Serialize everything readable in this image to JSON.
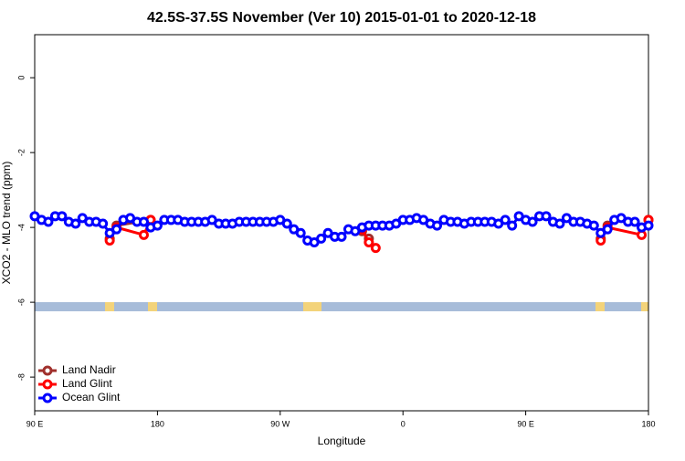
{
  "chart_data": {
    "type": "line",
    "title": "42.5S-37.5S November (Ver 10)   2015-01-01 to 2020-12-18",
    "x_label": "Longitude",
    "y_label": "XCO2 - MLO trend (ppm)",
    "xlim": [
      90,
      540
    ],
    "ylim": [
      -8.9,
      1.15
    ],
    "xticks": [
      {
        "value": 90,
        "label": "90 E"
      },
      {
        "value": 180,
        "label": "180"
      },
      {
        "value": 270,
        "label": "90 W"
      },
      {
        "value": 360,
        "label": "0"
      },
      {
        "value": 450,
        "label": "90 E"
      },
      {
        "value": 540,
        "label": "180"
      }
    ],
    "yticks": [
      0,
      -2,
      -4,
      -6,
      -8
    ],
    "legend": "bottom-left",
    "series": [
      {
        "name": "Land Nadir",
        "color": "#a0302c",
        "x": [
          145,
          150,
          175,
          330,
          335,
          505,
          510,
          540
        ],
        "values": [
          -4.3,
          -3.95,
          -3.8,
          -4.1,
          -4.3,
          -4.3,
          -3.95,
          -3.8
        ]
      },
      {
        "name": "Land Glint",
        "color": "#ff0000",
        "x": [
          145,
          150,
          170,
          175,
          330,
          335,
          340,
          505,
          510,
          535,
          540
        ],
        "values": [
          -4.35,
          -4.0,
          -4.2,
          -3.8,
          -4.05,
          -4.4,
          -4.55,
          -4.35,
          -4.0,
          -4.2,
          -3.8
        ]
      },
      {
        "name": "Ocean Glint",
        "color": "#0000ff",
        "x": [
          90,
          95,
          100,
          105,
          110,
          115,
          120,
          125,
          130,
          135,
          140,
          145,
          150,
          155,
          160,
          165,
          170,
          175,
          180,
          185,
          190,
          195,
          200,
          205,
          210,
          215,
          220,
          225,
          230,
          235,
          240,
          245,
          250,
          255,
          260,
          265,
          270,
          275,
          280,
          285,
          290,
          295,
          300,
          305,
          310,
          315,
          320,
          325,
          330,
          335,
          340,
          345,
          350,
          355,
          360,
          365,
          370,
          375,
          380,
          385,
          390,
          395,
          400,
          405,
          410,
          415,
          420,
          425,
          430,
          435,
          440,
          445,
          450,
          455,
          460,
          465,
          470,
          475,
          480,
          485,
          490,
          495,
          500,
          505,
          510,
          515,
          520,
          525,
          530,
          535,
          540
        ],
        "values": [
          -3.7,
          -3.8,
          -3.85,
          -3.7,
          -3.7,
          -3.85,
          -3.9,
          -3.75,
          -3.85,
          -3.85,
          -3.9,
          -4.15,
          -4.05,
          -3.8,
          -3.75,
          -3.85,
          -3.85,
          -4.0,
          -3.95,
          -3.8,
          -3.8,
          -3.8,
          -3.85,
          -3.85,
          -3.85,
          -3.85,
          -3.8,
          -3.9,
          -3.9,
          -3.9,
          -3.85,
          -3.85,
          -3.85,
          -3.85,
          -3.85,
          -3.85,
          -3.8,
          -3.9,
          -4.05,
          -4.15,
          -4.35,
          -4.4,
          -4.3,
          -4.15,
          -4.25,
          -4.25,
          -4.05,
          -4.1,
          -4.0,
          -3.95,
          -3.95,
          -3.95,
          -3.95,
          -3.9,
          -3.8,
          -3.8,
          -3.75,
          -3.8,
          -3.9,
          -3.95,
          -3.8,
          -3.85,
          -3.85,
          -3.9,
          -3.85,
          -3.85,
          -3.85,
          -3.85,
          -3.9,
          -3.8,
          -3.95,
          -3.7,
          -3.8,
          -3.85,
          -3.7,
          -3.7,
          -3.85,
          -3.9,
          -3.75,
          -3.85,
          -3.85,
          -3.9,
          -3.95,
          -4.15,
          -4.05,
          -3.8,
          -3.75,
          -3.85,
          -3.85,
          -4.0,
          -3.95
        ]
      }
    ]
  }
}
